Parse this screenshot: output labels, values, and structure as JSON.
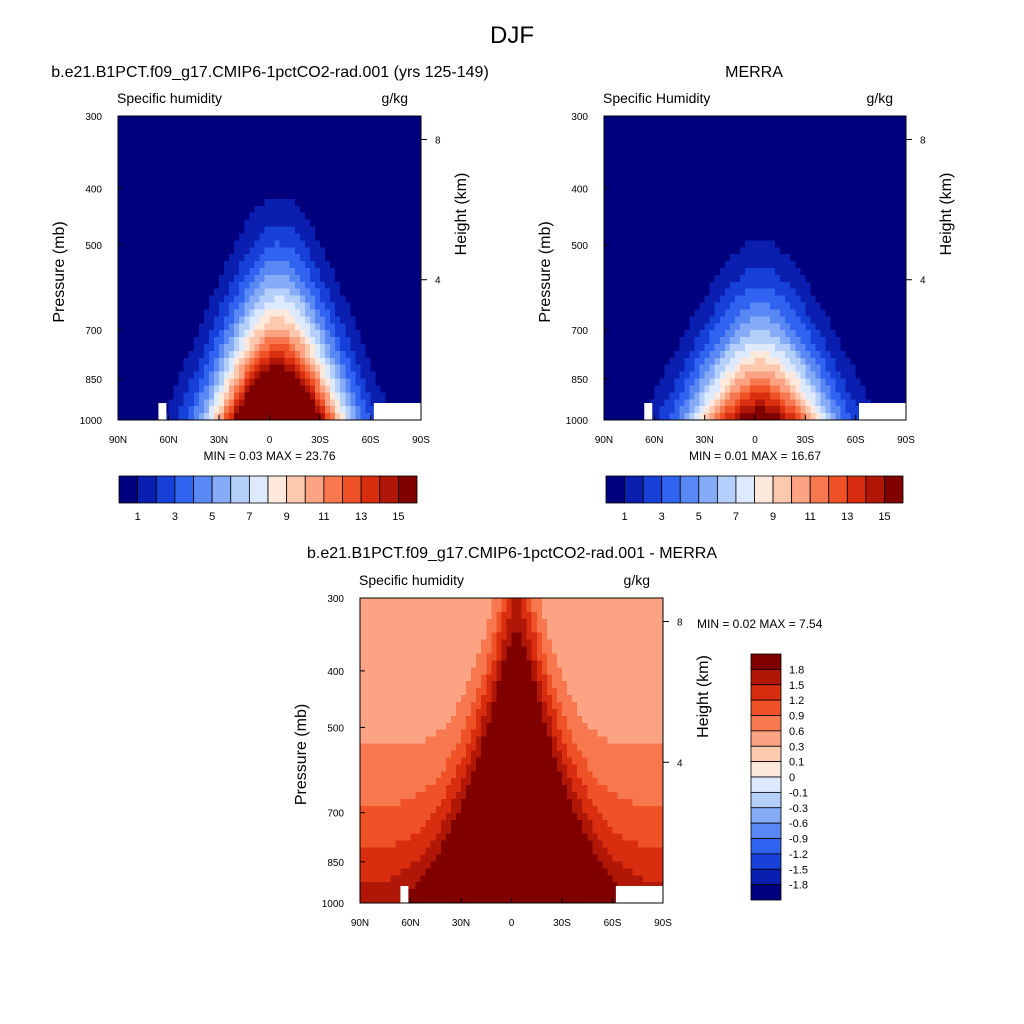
{
  "figure": {
    "title": "DJF"
  },
  "colors": {
    "cmap_abs": [
      "#00007f",
      "#0a1fb0",
      "#1740d9",
      "#2f63f0",
      "#5988f5",
      "#86acf8",
      "#b5cffb",
      "#dde9fd",
      "#fde8dc",
      "#fcc8ae",
      "#fba383",
      "#f7784f",
      "#ef5227",
      "#d82e0f",
      "#b01706",
      "#800000"
    ],
    "cmap_diff": [
      "#00007f",
      "#0a1fb0",
      "#1740d9",
      "#2f63f0",
      "#5988f5",
      "#86acf8",
      "#b5cffb",
      "#dde9fd",
      "#fde8dc",
      "#fcc8ae",
      "#fba383",
      "#f7784f",
      "#ef5227",
      "#d82e0f",
      "#b01706",
      "#800000"
    ]
  },
  "chart_data": [
    {
      "type": "heatmap",
      "title": "b.e21.B1PCT.f09_g17.CMIP6-1pctCO2-rad.001 (yrs 125-149)",
      "left_label": "Specific humidity",
      "right_label": "g/kg",
      "ylabel": "Pressure (mb)",
      "ylabel_right": "Height (km)",
      "x_ticks": [
        "90N",
        "60N",
        "30N",
        "0",
        "30S",
        "60S",
        "90S"
      ],
      "x_values": [
        -90,
        -60,
        -30,
        0,
        30,
        60,
        90
      ],
      "y_ticks": [
        "300",
        "400",
        "500",
        "700",
        "850",
        "1000"
      ],
      "y_values": [
        300,
        400,
        500,
        700,
        850,
        1000
      ],
      "y_right_ticks": [
        "8",
        "4"
      ],
      "y_right_values": [
        8,
        4
      ],
      "min_max": "MIN =   0.03  MAX =  23.76",
      "min": 0.03,
      "max": 23.76,
      "peak_center": 5,
      "peak_surface": 23.76,
      "peak_width": 38,
      "peak_top": 300,
      "colorbar": {
        "labels": [
          "1",
          "3",
          "5",
          "7",
          "9",
          "11",
          "13",
          "15"
        ],
        "levels": [
          1,
          2,
          3,
          4,
          5,
          6,
          7,
          8,
          9,
          10,
          11,
          12,
          13,
          14,
          15
        ]
      }
    },
    {
      "type": "heatmap",
      "title": "MERRA",
      "left_label": "Specific Humidity",
      "right_label": "g/kg",
      "ylabel": "Pressure (mb)",
      "ylabel_right": "Height (km)",
      "x_ticks": [
        "90N",
        "60N",
        "30N",
        "0",
        "30S",
        "60S",
        "90S"
      ],
      "x_values": [
        -90,
        -60,
        -30,
        0,
        30,
        60,
        90
      ],
      "y_ticks": [
        "300",
        "400",
        "500",
        "700",
        "850",
        "1000"
      ],
      "y_values": [
        300,
        400,
        500,
        700,
        850,
        1000
      ],
      "y_right_ticks": [
        "8",
        "4"
      ],
      "y_right_values": [
        8,
        4
      ],
      "min_max": "MIN =   0.01  MAX =  16.67",
      "min": 0.01,
      "max": 16.67,
      "peak_center": 3,
      "peak_surface": 16.67,
      "peak_width": 42,
      "peak_top": 360,
      "colorbar": {
        "labels": [
          "1",
          "3",
          "5",
          "7",
          "9",
          "11",
          "13",
          "15"
        ],
        "levels": [
          1,
          2,
          3,
          4,
          5,
          6,
          7,
          8,
          9,
          10,
          11,
          12,
          13,
          14,
          15
        ]
      }
    },
    {
      "type": "heatmap",
      "title": "b.e21.B1PCT.f09_g17.CMIP6-1pctCO2-rad.001 - MERRA",
      "left_label": "Specific humidity",
      "right_label": "g/kg",
      "ylabel": "Pressure (mb)",
      "ylabel_right": "Height (km)",
      "x_ticks": [
        "90N",
        "60N",
        "30N",
        "0",
        "30S",
        "60S",
        "90S"
      ],
      "x_values": [
        -90,
        -60,
        -30,
        0,
        30,
        60,
        90
      ],
      "y_ticks": [
        "300",
        "400",
        "500",
        "700",
        "850",
        "1000"
      ],
      "y_values": [
        300,
        400,
        500,
        700,
        850,
        1000
      ],
      "y_right_ticks": [
        "8",
        "4"
      ],
      "y_right_values": [
        8,
        4
      ],
      "min_max": "MIN =   0.02  MAX =   7.54",
      "min": 0.02,
      "max": 7.54,
      "colorbar": {
        "labels": [
          "1.8",
          "1.5",
          "1.2",
          "0.9",
          "0.6",
          "0.3",
          "0.1",
          "0",
          "-0.1",
          "-0.3",
          "-0.6",
          "-0.9",
          "-1.2",
          "-1.5",
          "-1.8"
        ],
        "levels": [
          -1.8,
          -1.5,
          -1.2,
          -0.9,
          -0.6,
          -0.3,
          -0.1,
          0,
          0.1,
          0.3,
          0.6,
          0.9,
          1.2,
          1.5,
          1.8
        ]
      }
    }
  ]
}
